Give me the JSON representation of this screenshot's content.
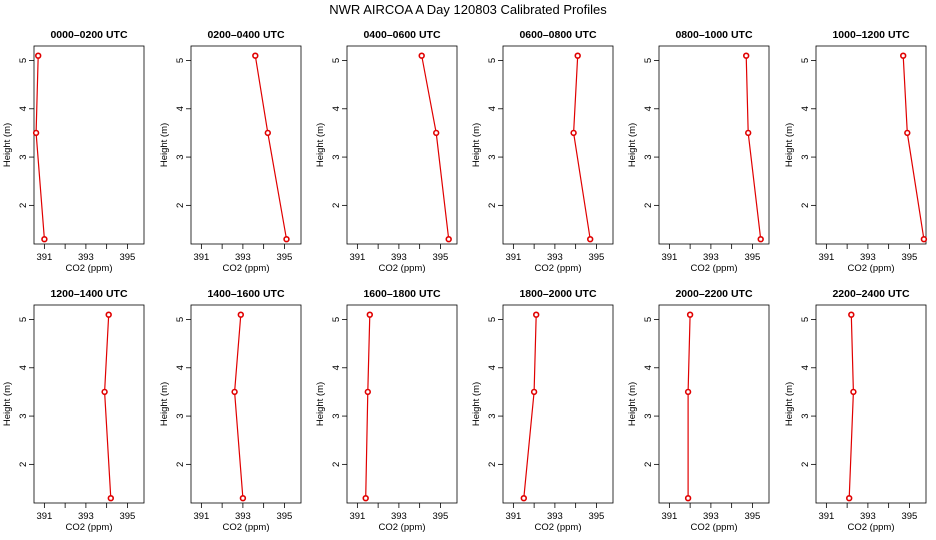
{
  "figure": {
    "title": "NWR AIRCOA A  Day 120803  Calibrated Profiles"
  },
  "chart_data": [
    {
      "type": "line",
      "title": "0000–0200 UTC",
      "xlabel": "CO2 (ppm)",
      "ylabel": "Height (m)",
      "x": [
        390.7,
        390.6,
        391.0
      ],
      "y": [
        5.1,
        3.5,
        1.3
      ],
      "xlim": [
        390.5,
        395.8
      ],
      "ylim": [
        1.2,
        5.3
      ],
      "xticks": [
        391,
        393,
        395
      ],
      "xticks_minor": [
        392,
        394
      ],
      "yticks": [
        2,
        3,
        4,
        5
      ]
    },
    {
      "type": "line",
      "title": "0200–0400 UTC",
      "xlabel": "CO2 (ppm)",
      "ylabel": "Height (m)",
      "x": [
        393.6,
        394.2,
        395.1
      ],
      "y": [
        5.1,
        3.5,
        1.3
      ],
      "xlim": [
        390.5,
        395.8
      ],
      "ylim": [
        1.2,
        5.3
      ],
      "xticks": [
        391,
        393,
        395
      ],
      "xticks_minor": [
        392,
        394
      ],
      "yticks": [
        2,
        3,
        4,
        5
      ]
    },
    {
      "type": "line",
      "title": "0400–0600 UTC",
      "xlabel": "CO2 (ppm)",
      "ylabel": "Height (m)",
      "x": [
        394.1,
        394.8,
        395.4
      ],
      "y": [
        5.1,
        3.5,
        1.3
      ],
      "xlim": [
        390.5,
        395.8
      ],
      "ylim": [
        1.2,
        5.3
      ],
      "xticks": [
        391,
        393,
        395
      ],
      "xticks_minor": [
        392,
        394
      ],
      "yticks": [
        2,
        3,
        4,
        5
      ]
    },
    {
      "type": "line",
      "title": "0600–0800 UTC",
      "xlabel": "CO2 (ppm)",
      "ylabel": "Height (m)",
      "x": [
        394.1,
        393.9,
        394.7
      ],
      "y": [
        5.1,
        3.5,
        1.3
      ],
      "xlim": [
        390.5,
        395.8
      ],
      "ylim": [
        1.2,
        5.3
      ],
      "xticks": [
        391,
        393,
        395
      ],
      "xticks_minor": [
        392,
        394
      ],
      "yticks": [
        2,
        3,
        4,
        5
      ]
    },
    {
      "type": "line",
      "title": "0800–1000 UTC",
      "xlabel": "CO2 (ppm)",
      "ylabel": "Height (m)",
      "x": [
        394.7,
        394.8,
        395.4
      ],
      "y": [
        5.1,
        3.5,
        1.3
      ],
      "xlim": [
        390.5,
        395.8
      ],
      "ylim": [
        1.2,
        5.3
      ],
      "xticks": [
        391,
        393,
        395
      ],
      "xticks_minor": [
        392,
        394
      ],
      "yticks": [
        2,
        3,
        4,
        5
      ]
    },
    {
      "type": "line",
      "title": "1000–1200 UTC",
      "xlabel": "CO2 (ppm)",
      "ylabel": "Height (m)",
      "x": [
        394.7,
        394.9,
        395.7
      ],
      "y": [
        5.1,
        3.5,
        1.3
      ],
      "xlim": [
        390.5,
        395.8
      ],
      "ylim": [
        1.2,
        5.3
      ],
      "xticks": [
        391,
        393,
        395
      ],
      "xticks_minor": [
        392,
        394
      ],
      "yticks": [
        2,
        3,
        4,
        5
      ]
    },
    {
      "type": "line",
      "title": "1200–1400 UTC",
      "xlabel": "CO2 (ppm)",
      "ylabel": "Height (m)",
      "x": [
        394.1,
        393.9,
        394.2
      ],
      "y": [
        5.1,
        3.5,
        1.3
      ],
      "xlim": [
        390.5,
        395.8
      ],
      "ylim": [
        1.2,
        5.3
      ],
      "xticks": [
        391,
        393,
        395
      ],
      "xticks_minor": [
        392,
        394
      ],
      "yticks": [
        2,
        3,
        4,
        5
      ]
    },
    {
      "type": "line",
      "title": "1400–1600 UTC",
      "xlabel": "CO2 (ppm)",
      "ylabel": "Height (m)",
      "x": [
        392.9,
        392.6,
        393.0
      ],
      "y": [
        5.1,
        3.5,
        1.3
      ],
      "xlim": [
        390.5,
        395.8
      ],
      "ylim": [
        1.2,
        5.3
      ],
      "xticks": [
        391,
        393,
        395
      ],
      "xticks_minor": [
        392,
        394
      ],
      "yticks": [
        2,
        3,
        4,
        5
      ]
    },
    {
      "type": "line",
      "title": "1600–1800 UTC",
      "xlabel": "CO2 (ppm)",
      "ylabel": "Height (m)",
      "x": [
        391.6,
        391.5,
        391.4
      ],
      "y": [
        5.1,
        3.5,
        1.3
      ],
      "xlim": [
        390.5,
        395.8
      ],
      "ylim": [
        1.2,
        5.3
      ],
      "xticks": [
        391,
        393,
        395
      ],
      "xticks_minor": [
        392,
        394
      ],
      "yticks": [
        2,
        3,
        4,
        5
      ]
    },
    {
      "type": "line",
      "title": "1800–2000 UTC",
      "xlabel": "CO2 (ppm)",
      "ylabel": "Height (m)",
      "x": [
        392.1,
        392.0,
        391.5
      ],
      "y": [
        5.1,
        3.5,
        1.3
      ],
      "xlim": [
        390.5,
        395.8
      ],
      "ylim": [
        1.2,
        5.3
      ],
      "xticks": [
        391,
        393,
        395
      ],
      "xticks_minor": [
        392,
        394
      ],
      "yticks": [
        2,
        3,
        4,
        5
      ]
    },
    {
      "type": "line",
      "title": "2000–2200 UTC",
      "xlabel": "CO2 (ppm)",
      "ylabel": "Height (m)",
      "x": [
        392.0,
        391.9,
        391.9
      ],
      "y": [
        5.1,
        3.5,
        1.3
      ],
      "xlim": [
        390.5,
        395.8
      ],
      "ylim": [
        1.2,
        5.3
      ],
      "xticks": [
        391,
        393,
        395
      ],
      "xticks_minor": [
        392,
        394
      ],
      "yticks": [
        2,
        3,
        4,
        5
      ]
    },
    {
      "type": "line",
      "title": "2200–2400 UTC",
      "xlabel": "CO2 (ppm)",
      "ylabel": "Height (m)",
      "x": [
        392.2,
        392.3,
        392.1
      ],
      "y": [
        5.1,
        3.5,
        1.3
      ],
      "xlim": [
        390.5,
        395.8
      ],
      "ylim": [
        1.2,
        5.3
      ],
      "xticks": [
        391,
        393,
        395
      ],
      "xticks_minor": [
        392,
        394
      ],
      "yticks": [
        2,
        3,
        4,
        5
      ]
    }
  ],
  "style": {
    "series_color": "#e00000",
    "frame_color": "#000000",
    "background": "#ffffff"
  }
}
